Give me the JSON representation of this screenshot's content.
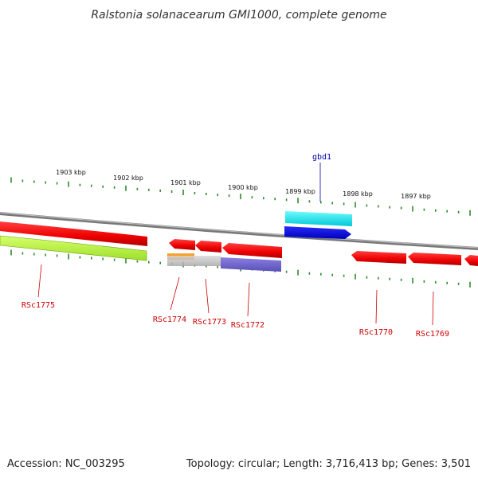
{
  "title": "Ralstonia solanacearum GMI1000, complete genome",
  "footer": {
    "accession": "Accession: NC_003295",
    "summary": "Topology: circular; Length: 3,716,413 bp; Genes: 3,501"
  },
  "colors": {
    "backbone": "#888888",
    "tick": "#2e8b2e",
    "label_reverse": "#cc0000",
    "label_forward": "#0000aa"
  },
  "scale_labels": [
    "1903 kbp",
    "1902 kbp",
    "1901 kbp",
    "1900 kbp",
    "1899 kbp",
    "1898 kbp",
    "1897 kbp"
  ],
  "genes": [
    {
      "name": "RSc1775",
      "color": "#ff0000"
    },
    {
      "name": "RSc1774",
      "color": "#ff0000"
    },
    {
      "name": "RSc1773",
      "color": "#ff0000"
    },
    {
      "name": "RSc1772",
      "color": "#ff0000"
    },
    {
      "name": "gbd1",
      "color": "#00e5e5"
    },
    {
      "name": "RSc1770",
      "color": "#ff0000"
    },
    {
      "name": "RSc1769",
      "color": "#ff0000"
    }
  ]
}
